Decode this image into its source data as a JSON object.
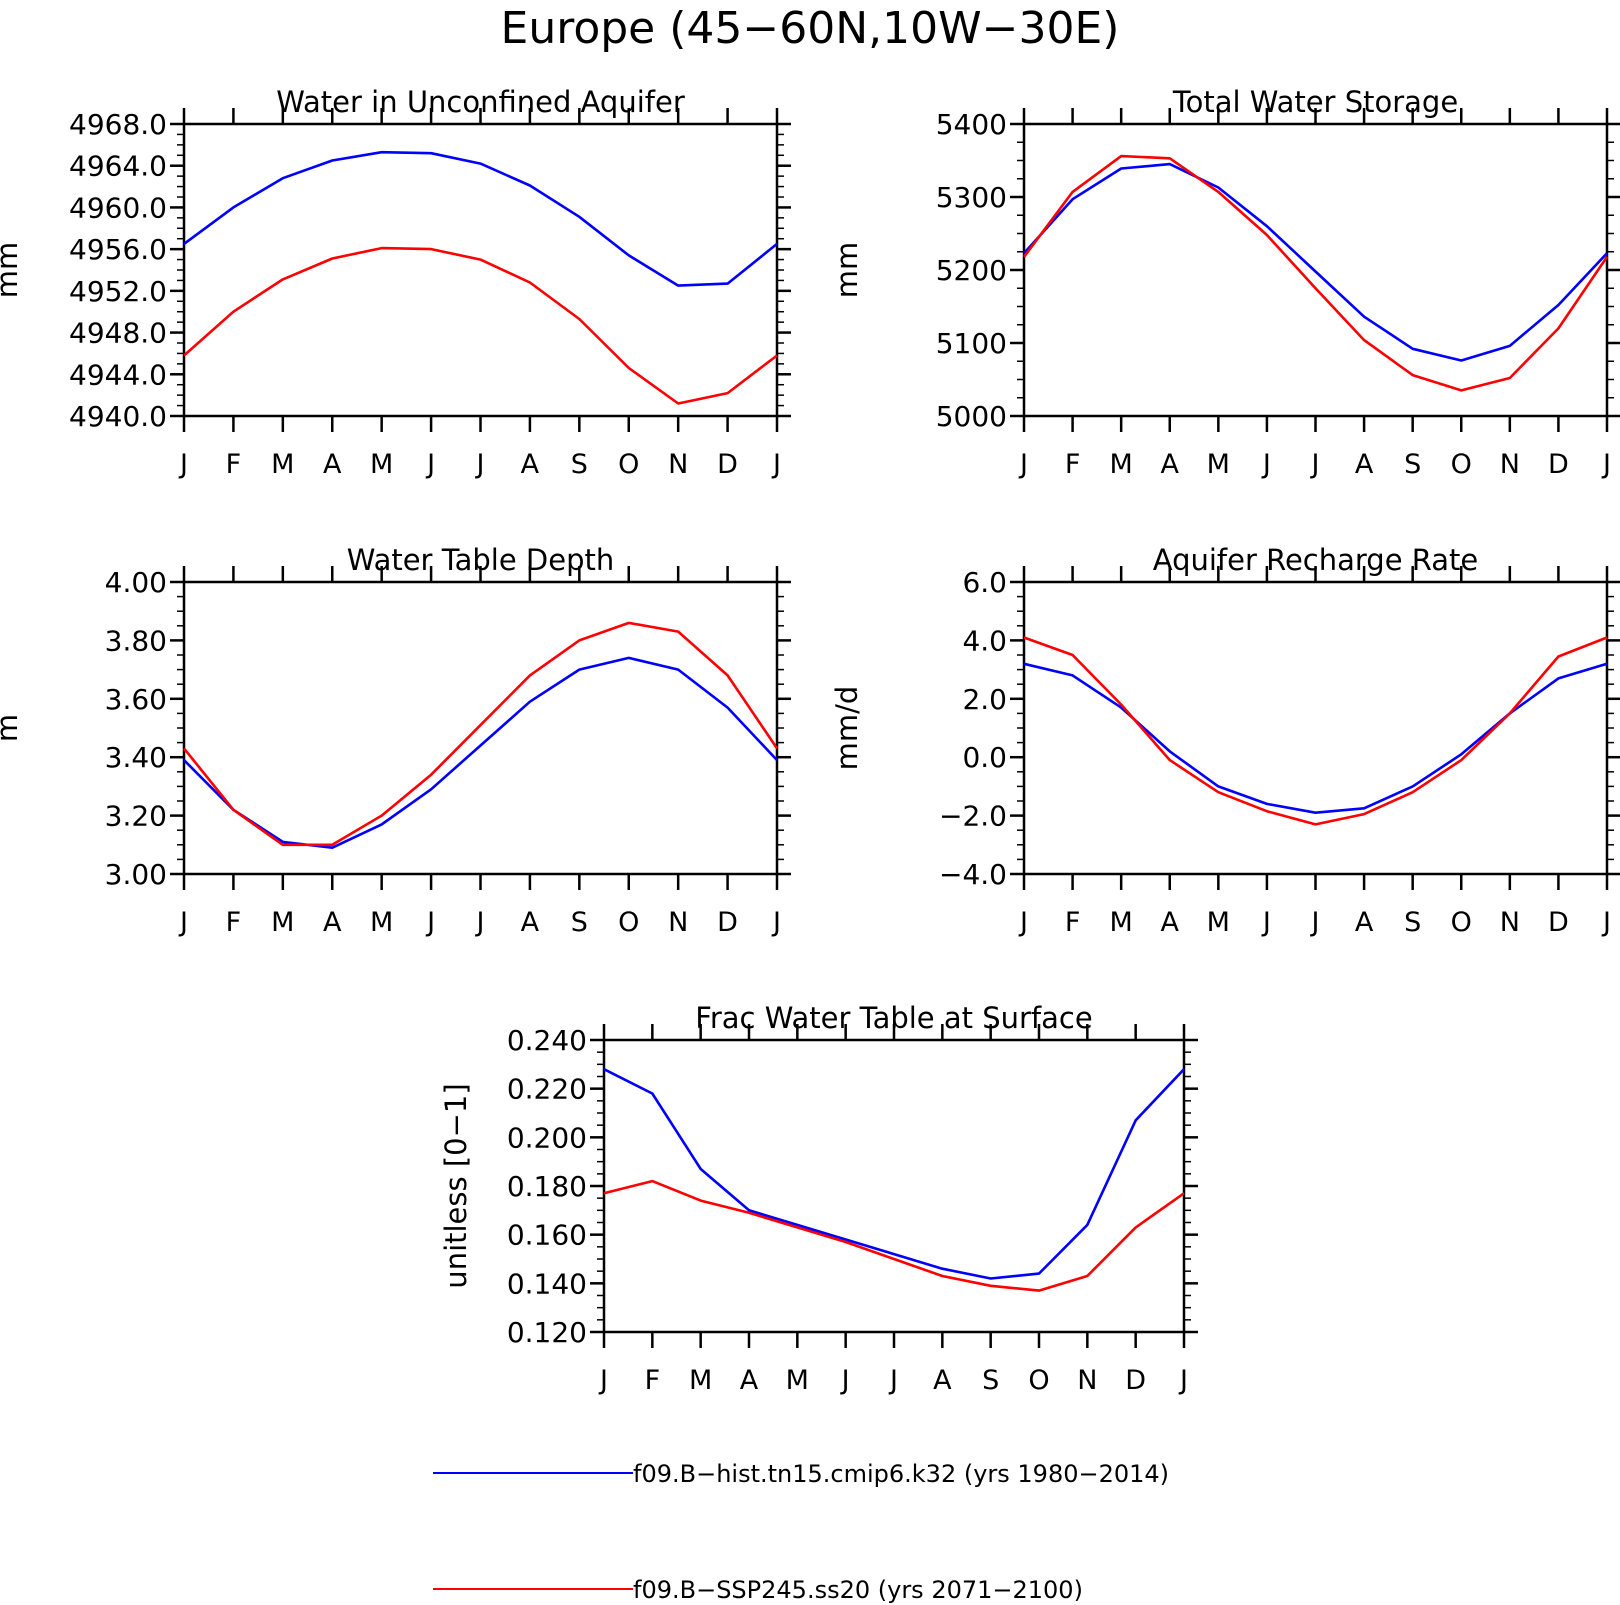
{
  "figure": {
    "title": "Europe (45−60N,10W−30E)"
  },
  "legend": {
    "entries": [
      {
        "label": "f09.B−hist.tn15.cmip6.k32 (yrs 1980−2014)",
        "color": "#0000ff"
      },
      {
        "label": "f09.B−SSP245.ss20 (yrs 2071−2100)",
        "color": "#ff0000"
      }
    ]
  },
  "chart_data": [
    {
      "type": "line",
      "title": "Water in Unconfined Aquifer",
      "ylabel": "mm",
      "xlabel": "",
      "categories": [
        "J",
        "F",
        "M",
        "A",
        "M",
        "J",
        "J",
        "A",
        "S",
        "O",
        "N",
        "D",
        "J"
      ],
      "ylim": [
        4940,
        4968
      ],
      "yticks": [
        "4940.0",
        "4944.0",
        "4948.0",
        "4952.0",
        "4956.0",
        "4960.0",
        "4964.0",
        "4968.0"
      ],
      "grid": false,
      "series": [
        {
          "color": "#0000ff",
          "values": [
            4956.5,
            4960.0,
            4962.8,
            4964.5,
            4965.3,
            4965.2,
            4964.2,
            4962.1,
            4959.1,
            4955.4,
            4952.5,
            4952.7,
            4956.5
          ]
        },
        {
          "color": "#ff0000",
          "values": [
            4945.8,
            4950.0,
            4953.1,
            4955.1,
            4956.1,
            4956.0,
            4955.0,
            4952.8,
            4949.3,
            4944.6,
            4941.2,
            4942.2,
            4945.8
          ]
        }
      ]
    },
    {
      "type": "line",
      "title": "Total Water Storage",
      "ylabel": "mm",
      "xlabel": "",
      "categories": [
        "J",
        "F",
        "M",
        "A",
        "M",
        "J",
        "J",
        "A",
        "S",
        "O",
        "N",
        "D",
        "J"
      ],
      "ylim": [
        5000,
        5400
      ],
      "yticks": [
        "5000",
        "5100",
        "5200",
        "5300",
        "5400"
      ],
      "grid": false,
      "series": [
        {
          "color": "#0000ff",
          "values": [
            5223,
            5297,
            5339,
            5345,
            5313,
            5260,
            5198,
            5136,
            5092,
            5076,
            5096,
            5152,
            5223
          ]
        },
        {
          "color": "#ff0000",
          "values": [
            5218,
            5307,
            5356,
            5353,
            5307,
            5248,
            5175,
            5104,
            5056,
            5035,
            5052,
            5120,
            5218
          ]
        }
      ]
    },
    {
      "type": "line",
      "title": "Water Table Depth",
      "ylabel": "m",
      "xlabel": "",
      "categories": [
        "J",
        "F",
        "M",
        "A",
        "M",
        "J",
        "J",
        "A",
        "S",
        "O",
        "N",
        "D",
        "J"
      ],
      "ylim": [
        3.0,
        4.0
      ],
      "yticks": [
        "3.00",
        "3.20",
        "3.40",
        "3.60",
        "3.80",
        "4.00"
      ],
      "grid": false,
      "series": [
        {
          "color": "#0000ff",
          "values": [
            3.39,
            3.22,
            3.11,
            3.09,
            3.17,
            3.29,
            3.44,
            3.59,
            3.7,
            3.74,
            3.7,
            3.57,
            3.39
          ]
        },
        {
          "color": "#ff0000",
          "values": [
            3.43,
            3.22,
            3.1,
            3.1,
            3.2,
            3.34,
            3.51,
            3.68,
            3.8,
            3.86,
            3.83,
            3.68,
            3.43
          ]
        }
      ]
    },
    {
      "type": "line",
      "title": "Aquifer Recharge Rate",
      "ylabel": "mm/d",
      "xlabel": "",
      "categories": [
        "J",
        "F",
        "M",
        "A",
        "M",
        "J",
        "J",
        "A",
        "S",
        "O",
        "N",
        "D",
        "J"
      ],
      "ylim": [
        -4.0,
        6.0
      ],
      "yticks": [
        "−4.0",
        "−2.0",
        "0.0",
        "2.0",
        "4.0",
        "6.0"
      ],
      "grid": false,
      "series": [
        {
          "color": "#0000ff",
          "values": [
            3.2,
            2.8,
            1.7,
            0.2,
            -1.0,
            -1.6,
            -1.9,
            -1.75,
            -1.0,
            0.1,
            1.5,
            2.7,
            3.2
          ]
        },
        {
          "color": "#ff0000",
          "values": [
            4.1,
            3.5,
            1.8,
            -0.1,
            -1.2,
            -1.85,
            -2.3,
            -1.95,
            -1.2,
            -0.1,
            1.5,
            3.45,
            4.1
          ]
        }
      ]
    },
    {
      "type": "line",
      "title": "Frac Water Table at Surface",
      "ylabel": "unitless [0−1]",
      "xlabel": "",
      "categories": [
        "J",
        "F",
        "M",
        "A",
        "M",
        "J",
        "J",
        "A",
        "S",
        "O",
        "N",
        "D",
        "J"
      ],
      "ylim": [
        0.12,
        0.24
      ],
      "yticks": [
        "0.120",
        "0.140",
        "0.160",
        "0.180",
        "0.200",
        "0.220",
        "0.240"
      ],
      "grid": false,
      "series": [
        {
          "color": "#0000ff",
          "values": [
            0.228,
            0.218,
            0.187,
            0.17,
            0.164,
            0.158,
            0.152,
            0.146,
            0.142,
            0.144,
            0.164,
            0.207,
            0.228
          ]
        },
        {
          "color": "#ff0000",
          "values": [
            0.177,
            0.182,
            0.174,
            0.169,
            0.163,
            0.157,
            0.15,
            0.143,
            0.139,
            0.137,
            0.143,
            0.163,
            0.177
          ]
        }
      ]
    }
  ]
}
